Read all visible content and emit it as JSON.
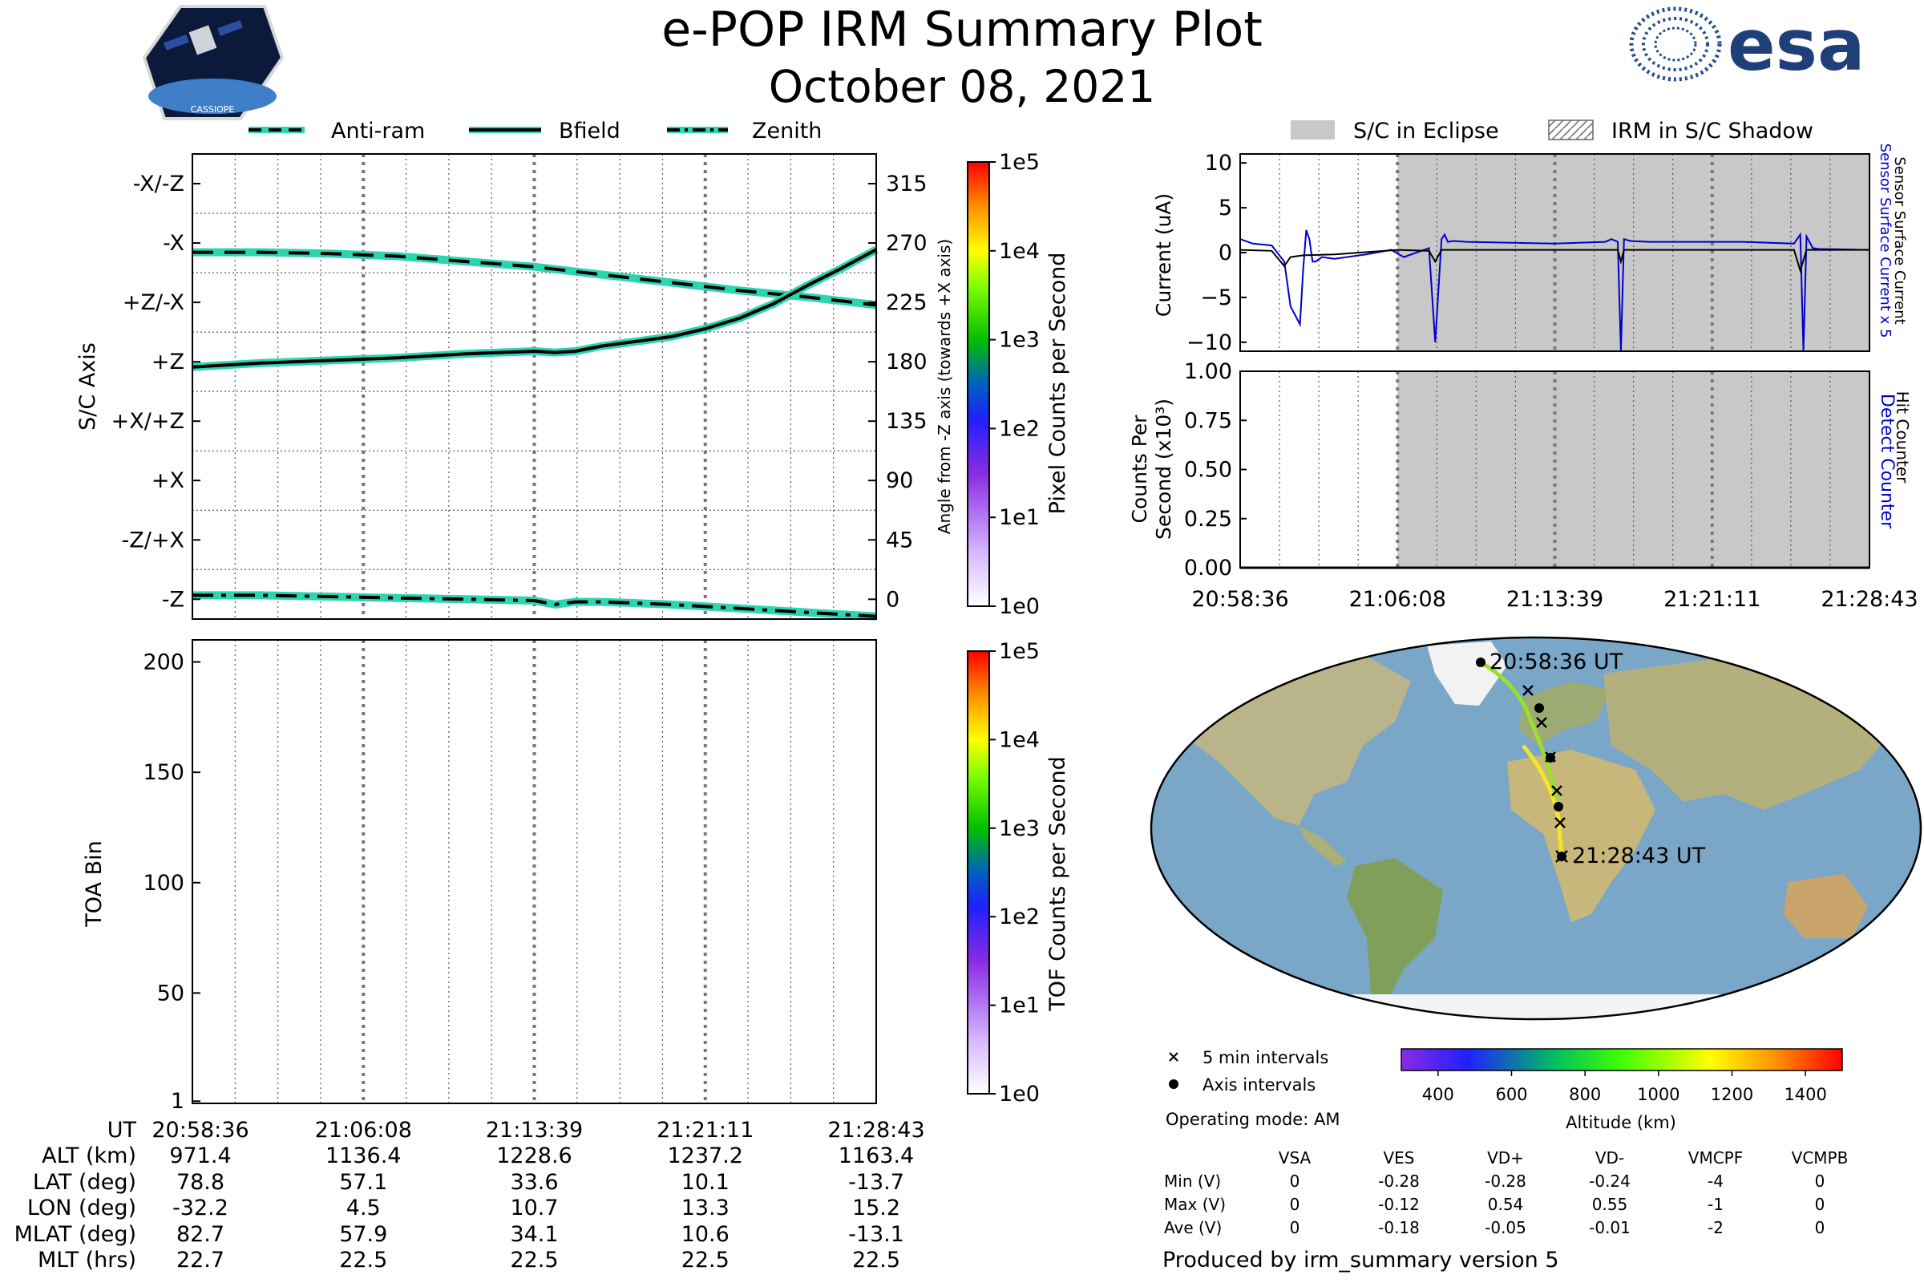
{
  "header": {
    "title": "e-POP IRM Summary Plot",
    "date": "October 08, 2021",
    "mission_logo_text": "CASSIOPE",
    "agency_logo_text": "esa"
  },
  "colors": {
    "attitude_line": "#000000",
    "attitude_halo": "#2ad5b0",
    "eclipse_fill": "#c8c8c8",
    "sensor_current_x5": "#0000cc",
    "sensor_current": "#000000",
    "detect_counter": "#0000cc",
    "ocean": "#7aa7c7",
    "land": "#b9b48a"
  },
  "icons": {
    "mission_logo": "cassiope-satellite-logo",
    "agency_logo": "esa-logo"
  },
  "attitude_panel": {
    "legend": [
      "Anti-ram",
      "Bfield",
      "Zenith"
    ],
    "ylabel_left": "S/C Axis",
    "ylabel_right": "Angle from -Z axis (towards +X axis)",
    "axis_labels": [
      "-X/-Z",
      "-X",
      "+Z/-X",
      "+Z",
      "+X/+Z",
      "+X",
      "-Z/+X",
      "-Z"
    ],
    "angle_ticks": [
      "315",
      "270",
      "225",
      "180",
      "135",
      "90",
      "45",
      "0"
    ],
    "colorbar_label": "Pixel Counts per Second",
    "colorbar_ticks": [
      "1e0",
      "1e1",
      "1e2",
      "1e3",
      "1e4",
      "1e5"
    ]
  },
  "toa_panel": {
    "ylabel": "TOA Bin",
    "yticks": [
      "200",
      "150",
      "100",
      "50",
      "1"
    ],
    "colorbar_label": "TOF Counts per Second",
    "colorbar_ticks": [
      "1e0",
      "1e1",
      "1e2",
      "1e3",
      "1e4",
      "1e5"
    ]
  },
  "ephemeris": {
    "row_labels": [
      "UT",
      "ALT (km)",
      "LAT (deg)",
      "LON (deg)",
      "MLAT (deg)",
      "MLT (hrs)"
    ],
    "columns": [
      [
        "20:58:36",
        "971.4",
        "78.8",
        "-32.2",
        "82.7",
        "22.7"
      ],
      [
        "21:06:08",
        "1136.4",
        "57.1",
        "4.5",
        "57.9",
        "22.5"
      ],
      [
        "21:13:39",
        "1228.6",
        "33.6",
        "10.7",
        "34.1",
        "22.5"
      ],
      [
        "21:21:11",
        "1237.2",
        "10.1",
        "13.3",
        "10.6",
        "22.5"
      ],
      [
        "21:28:43",
        "1163.4",
        "-13.7",
        "15.2",
        "-13.1",
        "22.5"
      ]
    ]
  },
  "current_panel": {
    "legend": [
      "S/C in Eclipse",
      "IRM in S/C Shadow"
    ],
    "ylabel": "Current (uA)",
    "yticks": [
      "10",
      "5",
      "0",
      "−5",
      "−10"
    ],
    "right_label_1": "Sensor Surface Current x 5",
    "right_label_2": "Sensor Surface Current"
  },
  "counts_panel": {
    "ylabel_1": "Counts Per",
    "ylabel_2": "Second (x10³)",
    "yticks": [
      "1.00",
      "0.75",
      "0.50",
      "0.25",
      "0.00"
    ],
    "right_label_1": "Detect Counter",
    "right_label_2": "Hit Counter",
    "xticks": [
      "20:58:36",
      "21:06:08",
      "21:13:39",
      "21:21:11",
      "21:28:43"
    ]
  },
  "map": {
    "start_label": "20:58:36 UT",
    "end_label": "21:28:43 UT",
    "legend_5min": "5 min intervals",
    "legend_axis": "Axis intervals",
    "operating_mode": "Operating mode: AM",
    "altitude_label": "Altitude (km)",
    "altitude_ticks": [
      "400",
      "600",
      "800",
      "1000",
      "1200",
      "1400"
    ]
  },
  "voltages": {
    "headers": [
      "VSA",
      "VES",
      "VD+",
      "VD-",
      "VMCPF",
      "VCMPB"
    ],
    "rows": [
      {
        "label": "Min (V)",
        "values": [
          "0",
          "-0.28",
          "-0.28",
          "-0.24",
          "-4",
          "0"
        ]
      },
      {
        "label": "Max (V)",
        "values": [
          "0",
          "-0.12",
          "0.54",
          "0.55",
          "-1",
          "0"
        ]
      },
      {
        "label": "Ave (V)",
        "values": [
          "0",
          "-0.18",
          "-0.05",
          "-0.01",
          "-2",
          "0"
        ]
      }
    ]
  },
  "footer": {
    "produced_by": "Produced by irm_summary version 5"
  },
  "chart_data": [
    {
      "type": "line",
      "title": "",
      "xlabel": "UT",
      "ylabel": "Angle from -Z axis (towards +X axis)",
      "ylim": [
        -15,
        337.5
      ],
      "x_ticks": [
        "20:58:36",
        "21:06:08",
        "21:13:39",
        "21:21:11",
        "21:28:43"
      ],
      "series": [
        {
          "name": "Anti-ram",
          "style": "dashed",
          "x": [
            0,
            0.1,
            0.2,
            0.3,
            0.4,
            0.5,
            0.6,
            0.7,
            0.8,
            0.9,
            1.0
          ],
          "values": [
            263,
            263,
            262,
            260,
            256,
            252,
            246,
            240,
            234,
            229,
            223
          ]
        },
        {
          "name": "Bfield",
          "style": "solid",
          "x": [
            0,
            0.1,
            0.2,
            0.3,
            0.4,
            0.5,
            0.53,
            0.56,
            0.6,
            0.7,
            0.75,
            0.8,
            0.85,
            0.9,
            0.95,
            1.0
          ],
          "values": [
            176,
            179,
            181,
            183,
            186,
            188,
            187,
            188,
            192,
            199,
            205,
            213,
            224,
            238,
            251,
            265
          ]
        },
        {
          "name": "Zenith",
          "style": "dashdot",
          "x": [
            0,
            0.1,
            0.2,
            0.3,
            0.4,
            0.5,
            0.53,
            0.56,
            0.6,
            0.7,
            0.8,
            0.9,
            1.0
          ],
          "values": [
            3,
            3,
            2,
            1,
            0,
            -1,
            -4,
            -2,
            -2,
            -4,
            -7,
            -10,
            -13
          ]
        }
      ]
    },
    {
      "type": "heatmap",
      "title": "",
      "xlabel": "UT",
      "ylabel": "TOA Bin",
      "ylim": [
        1,
        210
      ],
      "values": []
    },
    {
      "type": "line",
      "title": "",
      "xlabel": "",
      "ylabel": "Current (uA)",
      "ylim": [
        -11,
        11
      ],
      "x_ticks": [
        "20:58:36",
        "21:06:08",
        "21:13:39",
        "21:21:11",
        "21:28:43"
      ],
      "eclipse_x": [
        0.25,
        1.0
      ],
      "series": [
        {
          "name": "Sensor Surface Current x 5",
          "x": [
            0,
            0.02,
            0.05,
            0.07,
            0.08,
            0.095,
            0.1,
            0.105,
            0.11,
            0.115,
            0.12,
            0.13,
            0.15,
            0.2,
            0.24,
            0.26,
            0.3,
            0.31,
            0.32,
            0.325,
            0.33,
            0.34,
            0.36,
            0.5,
            0.58,
            0.59,
            0.6,
            0.605,
            0.61,
            0.62,
            0.65,
            0.8,
            0.88,
            0.89,
            0.895,
            0.9,
            0.91,
            0.92,
            1.0
          ],
          "values": [
            1.5,
            1,
            0.8,
            -1,
            -6,
            -8,
            -2,
            2.5,
            1.5,
            -1,
            -1,
            -0.5,
            -0.7,
            -0.2,
            0.3,
            -0.5,
            0.5,
            -10,
            1.5,
            2,
            1.2,
            1.3,
            1.2,
            1,
            1.2,
            1.5,
            1.2,
            -11,
            1.5,
            1.3,
            1.2,
            1.2,
            1,
            2,
            -11,
            1.8,
            0.5,
            0.4,
            0.3
          ]
        },
        {
          "name": "Sensor Surface Current",
          "x": [
            0,
            0.05,
            0.07,
            0.08,
            0.1,
            0.15,
            0.25,
            0.3,
            0.31,
            0.32,
            0.5,
            0.6,
            0.605,
            0.61,
            0.8,
            0.88,
            0.89,
            0.9,
            1.0
          ],
          "values": [
            0.3,
            0.2,
            -1.5,
            -0.5,
            -0.3,
            -0.2,
            0.3,
            0.2,
            -1,
            0.3,
            0.3,
            0.3,
            -1,
            0.3,
            0.3,
            0.3,
            -2,
            0.3,
            0.3
          ]
        }
      ]
    },
    {
      "type": "line",
      "title": "",
      "xlabel": "",
      "ylabel": "Counts Per Second (x10³)",
      "ylim": [
        0,
        1.0
      ],
      "x_ticks": [
        "20:58:36",
        "21:06:08",
        "21:13:39",
        "21:21:11",
        "21:28:43"
      ],
      "eclipse_x": [
        0.25,
        1.0
      ],
      "series": [
        {
          "name": "Detect Counter",
          "x": [
            0,
            1
          ],
          "values": [
            0,
            0
          ]
        },
        {
          "name": "Hit Counter",
          "x": [
            0,
            1
          ],
          "values": [
            0,
            0
          ]
        }
      ]
    }
  ]
}
